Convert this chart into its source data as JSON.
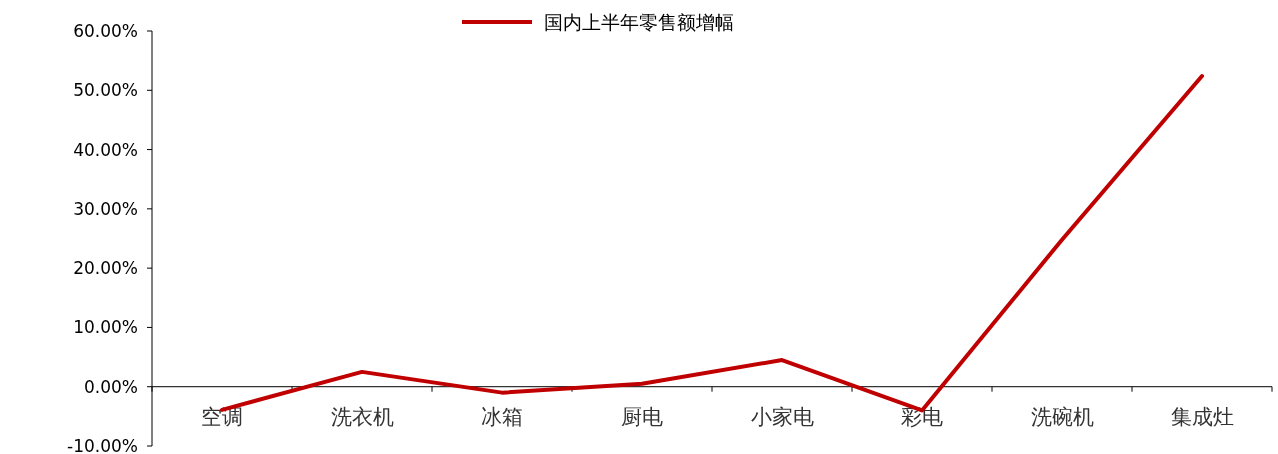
{
  "chart_data": {
    "type": "line",
    "categories": [
      "空调",
      "洗衣机",
      "冰箱",
      "厨电",
      "小家电",
      "彩电",
      "洗碗机",
      "集成灶"
    ],
    "series": [
      {
        "name": "国内上半年零售额增幅",
        "color": "#c00000",
        "values": [
          -3.9,
          2.5,
          -1.0,
          0.5,
          4.5,
          -4.0,
          24.8,
          52.4
        ]
      }
    ],
    "ylim": [
      -10,
      60
    ],
    "yticks": [
      {
        "value": -10,
        "label": "-10.00%"
      },
      {
        "value": 0,
        "label": "0.00%"
      },
      {
        "value": 10,
        "label": "10.00%"
      },
      {
        "value": 20,
        "label": "20.00%"
      },
      {
        "value": 30,
        "label": "30.00%"
      },
      {
        "value": 40,
        "label": "40.00%"
      },
      {
        "value": 50,
        "label": "50.00%"
      },
      {
        "value": 60,
        "label": "60.00%"
      }
    ],
    "grid": false,
    "legend": "top",
    "marker": "none",
    "line_style": "solid"
  }
}
